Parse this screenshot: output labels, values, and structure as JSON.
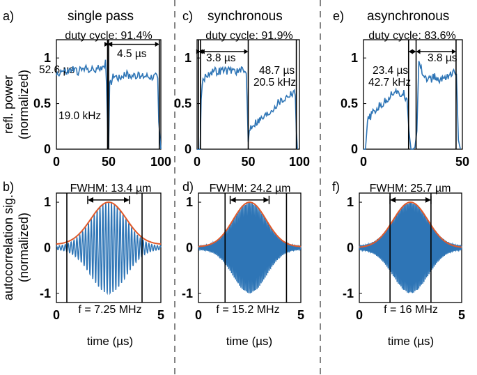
{
  "figure": {
    "row_labels": {
      "top_ylabel_1": "refl. power",
      "top_ylabel_2": "(normalized)",
      "bottom_ylabel_1": "autocorrelation sig.",
      "bottom_ylabel_2": "(normalized)"
    },
    "columns": [
      {
        "title": "single pass",
        "top_panel_label": "a)",
        "bottom_panel_label": "b)",
        "duty_cycle": "duty cycle: 91.4%",
        "annotations": [
          "52.6 µs",
          "4.5 µs",
          "19.0 kHz"
        ],
        "fwhm": "FWHM: 13.4 µm",
        "freq": "f = 7.25 MHz",
        "xlabel": "time (µs)"
      },
      {
        "title": "synchronous",
        "top_panel_label": "c)",
        "bottom_panel_label": "d)",
        "duty_cycle": "duty cycle: 91.9%",
        "annotations": [
          "3.8 µs",
          "48.7 µs",
          "20.5 kHz"
        ],
        "fwhm": "FWHM: 24.2 µm",
        "freq": "f = 15.2 MHz",
        "xlabel": "time (µs)"
      },
      {
        "title": "asynchronous",
        "top_panel_label": "e)",
        "bottom_panel_label": "f)",
        "duty_cycle": "duty cycle: 83.6%",
        "annotations": [
          "23.4 µs",
          "42.7 kHz",
          "3.8 µs"
        ],
        "fwhm": "FWHM: 25.7 µm",
        "freq": "f = 16 MHz",
        "xlabel": "time (µs)"
      }
    ]
  },
  "chart_data": [
    {
      "type": "line",
      "panel": "a)",
      "series": [
        {
          "color": "#2e75b6",
          "x": [
            0,
            5,
            10,
            15,
            20,
            25,
            30,
            35,
            40,
            45,
            47,
            48,
            49,
            50,
            51,
            55,
            60,
            65,
            70,
            75,
            80,
            85,
            90,
            95,
            97,
            98,
            100
          ],
          "y": [
            0.82,
            0.86,
            0.84,
            0.88,
            0.85,
            0.87,
            0.89,
            0.86,
            0.88,
            0.92,
            0.94,
            0.7,
            0.25,
            0.02,
            0.7,
            0.82,
            0.78,
            0.83,
            0.8,
            0.82,
            0.79,
            0.81,
            0.8,
            0.8,
            0.78,
            0.3,
            0.0
          ]
        }
      ],
      "xlim": [
        0,
        100
      ],
      "ylim": [
        0,
        1.2
      ],
      "xticks": [
        "0",
        "50",
        "100"
      ],
      "yticks": [
        "0",
        "0.5",
        "1"
      ],
      "vlines": [
        49,
        50,
        98.5
      ]
    },
    {
      "type": "line",
      "panel": "c)",
      "series": [
        {
          "color": "#2e75b6",
          "x": [
            0,
            1,
            3,
            4,
            5,
            8,
            12,
            16,
            20,
            25,
            30,
            35,
            40,
            45,
            48,
            49,
            50,
            51,
            54,
            58,
            62,
            66,
            70,
            75,
            80,
            85,
            90,
            93,
            95,
            96,
            97,
            98
          ],
          "y": [
            0.0,
            0.0,
            0.0,
            0.55,
            0.72,
            0.8,
            0.84,
            0.86,
            0.85,
            0.87,
            0.86,
            0.87,
            0.85,
            0.86,
            0.83,
            0.5,
            0.08,
            0.22,
            0.27,
            0.3,
            0.33,
            0.36,
            0.4,
            0.46,
            0.52,
            0.55,
            0.6,
            0.62,
            0.66,
            0.58,
            0.2,
            0.0
          ]
        }
      ],
      "xlim": [
        0,
        100
      ],
      "ylim": [
        0,
        1.2
      ],
      "xticks": [
        "0",
        "50",
        "100"
      ],
      "yticks": [
        "0",
        "0.5",
        "1"
      ],
      "vlines": [
        1.5,
        3.3,
        50,
        97
      ]
    },
    {
      "type": "line",
      "panel": "e)",
      "series": [
        {
          "color": "#2e75b6",
          "x": [
            0,
            1,
            2,
            4,
            6,
            8,
            10,
            12,
            14,
            16,
            18,
            20,
            22,
            23,
            24,
            25,
            26,
            27,
            28,
            30,
            32,
            34,
            36,
            38,
            40,
            42,
            44,
            46,
            47,
            48,
            49
          ],
          "y": [
            0.0,
            0.0,
            0.3,
            0.38,
            0.42,
            0.47,
            0.5,
            0.55,
            0.6,
            0.65,
            0.58,
            0.62,
            0.55,
            0.2,
            0.0,
            0.0,
            0.02,
            0.2,
            1.0,
            0.82,
            0.78,
            0.76,
            0.8,
            0.74,
            0.78,
            0.8,
            0.82,
            0.84,
            0.82,
            0.1,
            0.0
          ]
        }
      ],
      "xlim": [
        0,
        50
      ],
      "ylim": [
        0,
        1.2
      ],
      "xticks": [
        "0",
        "50"
      ],
      "yticks": [
        "0",
        "0.5",
        "1"
      ],
      "vlines": [
        22.8,
        26.6,
        46.8
      ]
    },
    {
      "type": "line",
      "panel": "b)",
      "series": [
        {
          "name": "autocorrelation",
          "color": "#2e75b6",
          "oscillation_frequency_mhz": 7.25,
          "center": 2.5,
          "envelope_fwhm_us": 2.0,
          "x_range": [
            0,
            5
          ]
        },
        {
          "name": "envelope",
          "color": "#e05a2b",
          "center": 2.5,
          "fwhm_us": 2.0,
          "baseline": 0.07,
          "x_range": [
            0,
            5
          ]
        }
      ],
      "xlim": [
        0,
        5
      ],
      "ylim": [
        -1.2,
        1.2
      ],
      "xticks": [
        "0",
        "5"
      ],
      "yticks": [
        "-1",
        "0",
        "1"
      ],
      "vlines": [
        0.5,
        4.1
      ],
      "fwhm_arrow": [
        1.5,
        3.5
      ]
    },
    {
      "type": "line",
      "panel": "d)",
      "series": [
        {
          "name": "autocorrelation",
          "color": "#2e75b6",
          "oscillation_frequency_mhz": 15.2,
          "center": 2.5,
          "envelope_fwhm_us": 1.9,
          "x_range": [
            0,
            5
          ]
        },
        {
          "name": "envelope",
          "color": "#e05a2b",
          "center": 2.5,
          "fwhm_us": 1.9,
          "baseline": 0.02,
          "x_range": [
            0,
            5
          ]
        }
      ],
      "xlim": [
        0,
        5
      ],
      "ylim": [
        -1.2,
        1.2
      ],
      "xticks": [
        "0",
        "5"
      ],
      "yticks": [
        "-1",
        "0",
        "1"
      ],
      "vlines": [
        1.3,
        4.3
      ],
      "fwhm_arrow": [
        1.55,
        3.45
      ]
    },
    {
      "type": "line",
      "panel": "f)",
      "series": [
        {
          "name": "autocorrelation",
          "color": "#2e75b6",
          "oscillation_frequency_mhz": 16,
          "center": 2.5,
          "envelope_fwhm_us": 2.0,
          "x_range": [
            0,
            5
          ]
        },
        {
          "name": "envelope",
          "color": "#e05a2b",
          "center": 2.5,
          "fwhm_us": 2.0,
          "baseline": 0.0,
          "x_range": [
            0,
            5
          ]
        }
      ],
      "xlim": [
        0,
        5
      ],
      "ylim": [
        -1.2,
        1.2
      ],
      "xticks": [
        "0",
        "5"
      ],
      "yticks": [
        "-1",
        "0",
        "1"
      ],
      "vlines": [
        1.5,
        3.5
      ],
      "fwhm_arrow": [
        1.5,
        3.5
      ]
    }
  ]
}
